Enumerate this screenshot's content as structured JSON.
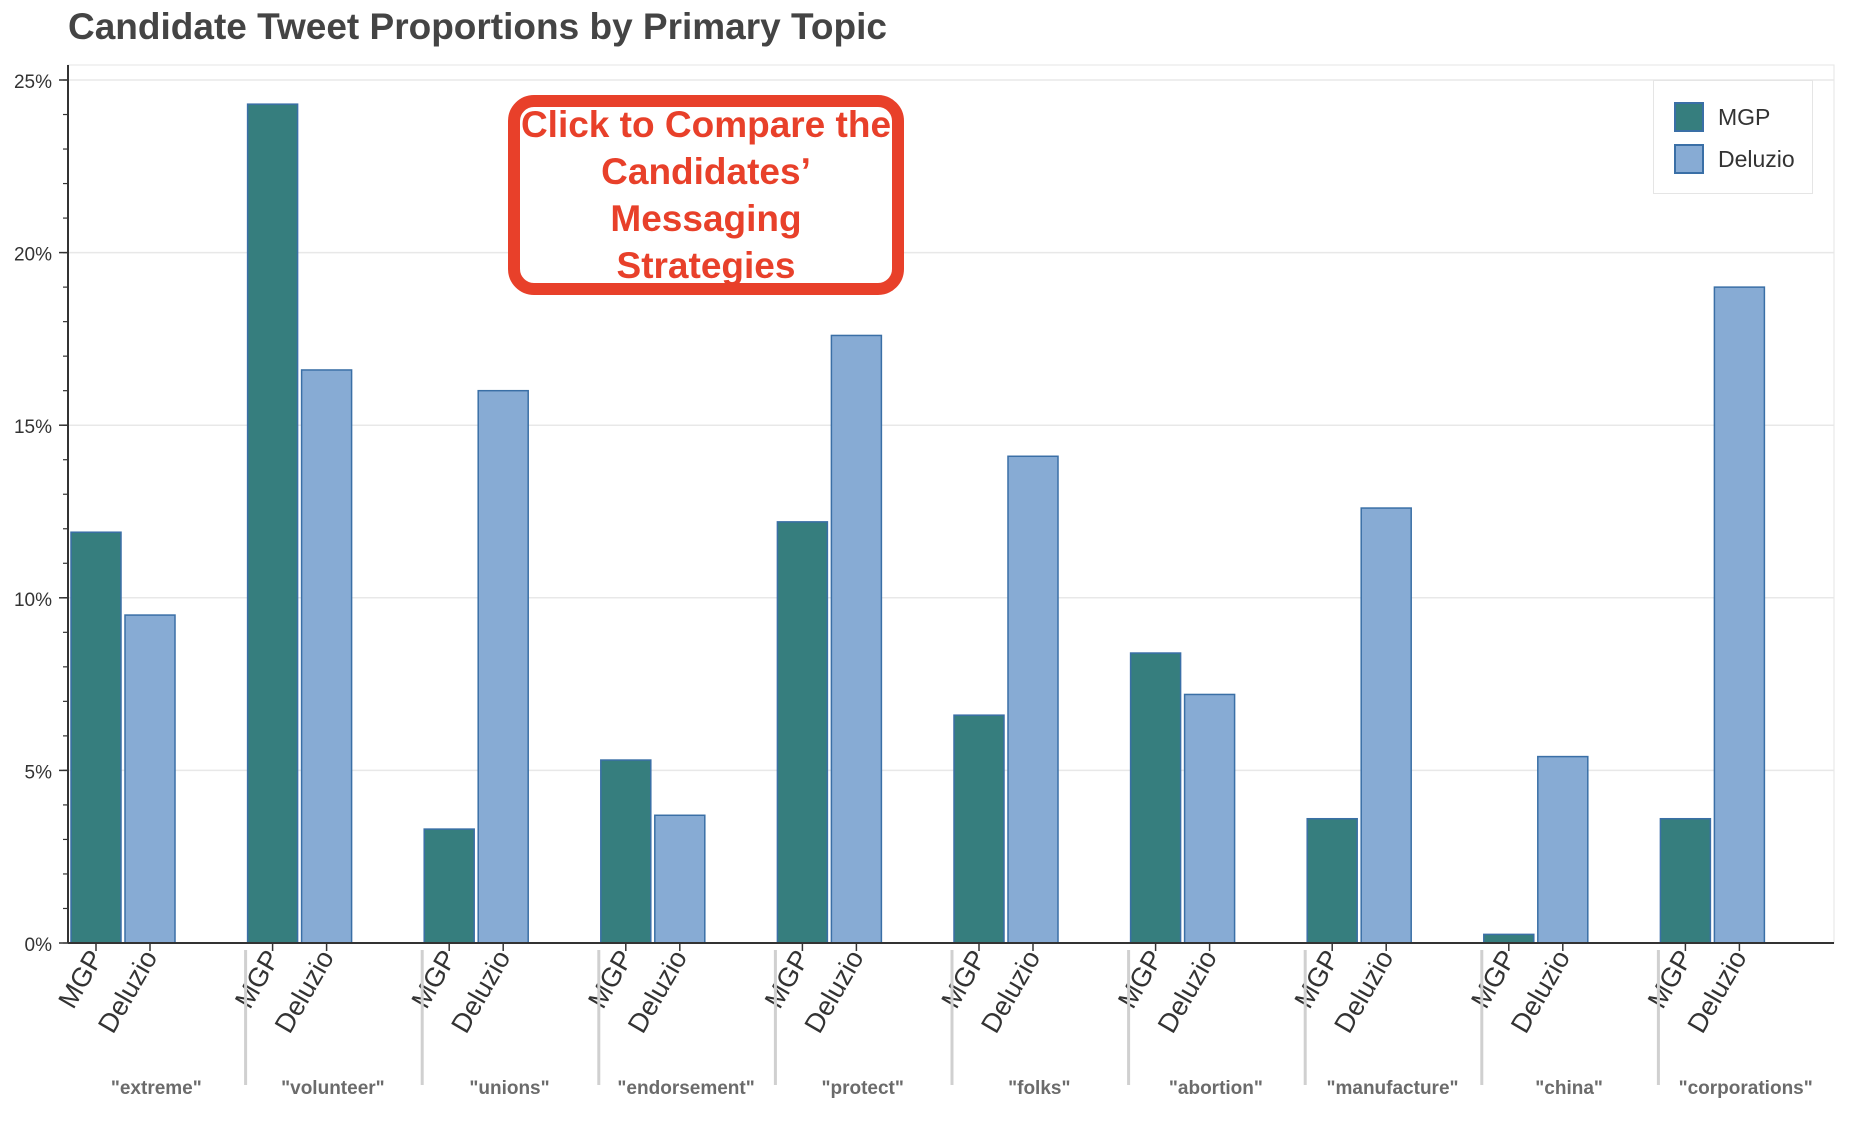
{
  "chart_data": {
    "type": "bar",
    "title": "Candidate Tweet Proportions by Primary Topic",
    "xlabel": "",
    "ylabel": "",
    "ylim": [
      0,
      0.25
    ],
    "y_ticks": [
      {
        "value": 0,
        "label": "0%"
      },
      {
        "value": 0.05,
        "label": "5%"
      },
      {
        "value": 0.1,
        "label": "10%"
      },
      {
        "value": 0.15,
        "label": "15%"
      },
      {
        "value": 0.2,
        "label": "20%"
      },
      {
        "value": 0.25,
        "label": "25%"
      }
    ],
    "categories": [
      "\"extreme\"",
      "\"volunteer\"",
      "\"unions\"",
      "\"endorsement\"",
      "\"protect\"",
      "\"folks\"",
      "\"abortion\"",
      "\"manufacture\"",
      "\"china\"",
      "\"corporations\""
    ],
    "series": [
      {
        "name": "MGP",
        "color": "#367e7e",
        "values": [
          0.119,
          0.243,
          0.033,
          0.053,
          0.122,
          0.066,
          0.084,
          0.036,
          0.0025,
          0.036
        ]
      },
      {
        "name": "Deluzio",
        "color": "#87abd4",
        "values": [
          0.095,
          0.166,
          0.16,
          0.037,
          0.176,
          0.141,
          0.072,
          0.126,
          0.054,
          0.19
        ]
      }
    ],
    "grid": true,
    "legend_position": "top-right"
  },
  "annotation": {
    "text": "Click to Compare the Candidates’ Messaging Strategies",
    "color": "#e8402a"
  },
  "colors": {
    "bar_outline": "#3a6fa6",
    "axis": "#333333",
    "category_label": "#6b6b6b",
    "separator": "#d0d0d0",
    "grid": "#e8e8e8"
  }
}
